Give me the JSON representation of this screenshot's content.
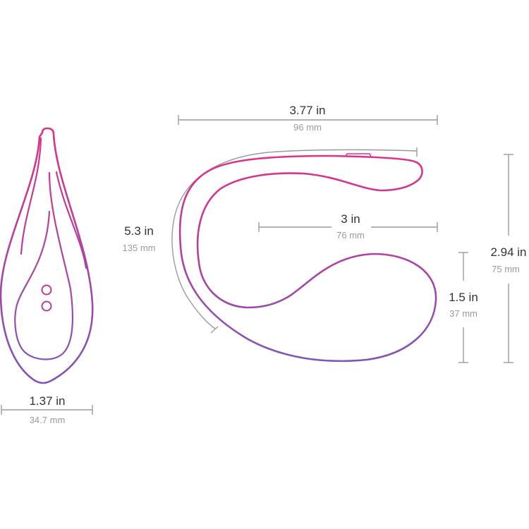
{
  "colors": {
    "accent_top": "#e0308a",
    "accent_bottom": "#7d55b8",
    "dimension_line": "#9b9b9b",
    "label_primary": "#333333",
    "label_secondary": "#9a9a9a"
  },
  "dimensions": {
    "width_top": {
      "inch": "3.77 in",
      "mm": "96 mm"
    },
    "arm_length": {
      "inch": "5.3 in",
      "mm": "135 mm"
    },
    "inner_width": {
      "inch": "3 in",
      "mm": "76 mm"
    },
    "total_height": {
      "inch": "2.94 in",
      "mm": "75 mm"
    },
    "bulb_height": {
      "inch": "1.5 in",
      "mm": "37 mm"
    },
    "front_width": {
      "inch": "1.37 in",
      "mm": "34.7 mm"
    }
  }
}
